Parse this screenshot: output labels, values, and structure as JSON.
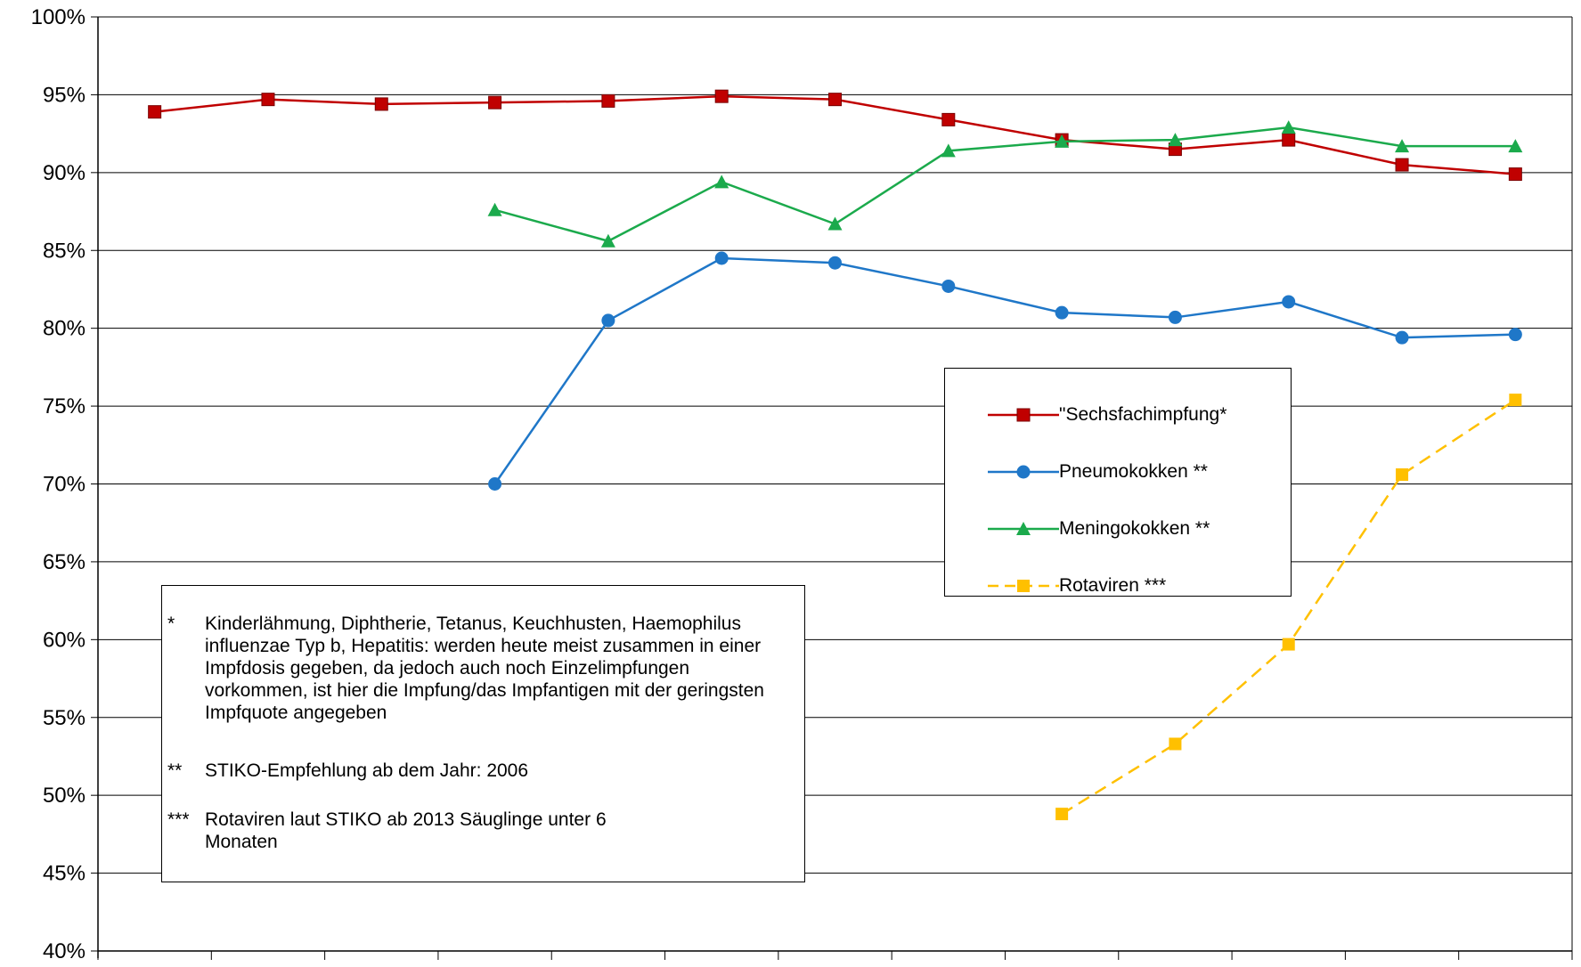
{
  "chart_data": {
    "type": "line",
    "ylim": [
      40,
      100
    ],
    "ytick_labels": [
      "100%",
      "95%",
      "90%",
      "85%",
      "80%",
      "75%",
      "70%",
      "65%",
      "60%",
      "55%",
      "50%",
      "45%",
      "40%"
    ],
    "ytick_values": [
      100,
      95,
      90,
      85,
      80,
      75,
      70,
      65,
      60,
      55,
      50,
      45,
      40
    ],
    "n_categories": 13,
    "grid": true,
    "legend_position": "right",
    "series": [
      {
        "name": "\"Sechsfachimpfung*",
        "color": "#C00000",
        "marker": "square",
        "dash": false,
        "values": [
          93.9,
          94.7,
          94.4,
          94.5,
          94.6,
          94.9,
          94.7,
          93.4,
          92.1,
          91.5,
          92.1,
          90.5,
          89.9
        ]
      },
      {
        "name": "Pneumokokken **",
        "color": "#1F77C8",
        "marker": "circle",
        "dash": false,
        "values": [
          null,
          null,
          null,
          70.0,
          80.5,
          84.5,
          84.2,
          82.7,
          81.0,
          80.7,
          81.7,
          79.4,
          79.6
        ]
      },
      {
        "name": "Meningokokken **",
        "color": "#1BAA4C",
        "marker": "triangle",
        "dash": false,
        "values": [
          null,
          null,
          null,
          87.6,
          85.6,
          89.4,
          86.7,
          91.4,
          92.0,
          92.1,
          92.9,
          91.7,
          91.7
        ]
      },
      {
        "name": "Rotaviren ***",
        "color": "#FFC000",
        "marker": "square",
        "dash": true,
        "values": [
          null,
          null,
          null,
          null,
          null,
          null,
          null,
          null,
          48.8,
          53.3,
          59.7,
          70.6,
          75.4
        ]
      }
    ]
  },
  "notes": {
    "n1_mark": "*",
    "n1_text": "Kinderlähmung, Diphtherie, Tetanus, Keuchhusten, Haemophilus influenzae Typ b, Hepatitis: werden heute meist zusammen in einer Impfdosis gegeben, da jedoch auch noch Einzelimpfungen vorkommen, ist hier die Impfung/das Impfantigen mit der geringsten Impfquote angegeben",
    "n2_mark": "**",
    "n2_text": "STIKO-Empfehlung ab dem Jahr: 2006",
    "n3_mark": "***",
    "n3_text": "Rotaviren laut STIKO ab 2013 Säuglinge unter 6 Monaten"
  }
}
